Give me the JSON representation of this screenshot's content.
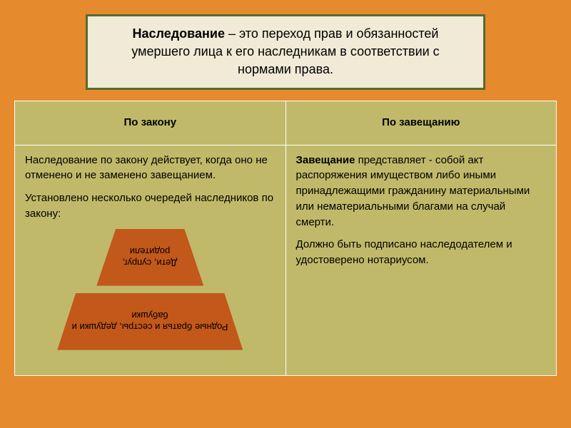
{
  "title": {
    "term": "Наследование",
    "definition": " – это переход прав и обязанностей умершего лица к его наследникам в соответствии с нормами права."
  },
  "table": {
    "headers": {
      "left": "По закону",
      "right": "По завещанию"
    },
    "left": {
      "p1": "Наследование по закону действует, когда оно не отменено и не заменено завещанием.",
      "p2": "Установлено несколько очередей наследников по закону:"
    },
    "right": {
      "p1_bold": "Завещание",
      "p1_rest": " представляет - собой акт распоряжения имуществом либо иными принадлежащими гражданину материальными или нематериальными благами на случай смерти.",
      "p2": "Должно быть подписано наследодателем и удостоверено нотариусом."
    },
    "pyramid": {
      "tier1": "Дети, супруг, родители",
      "tier2": "Родные братья и сестры, дедушки и бабушки"
    }
  },
  "style": {
    "bg": "#e68a2e",
    "title_bg": "#f0ead6",
    "title_border": "#556b2f",
    "table_bg": "#c0b96a",
    "cell_border": "#ffffff",
    "trap_fill": "#c2581a",
    "title_fontsize": 18,
    "body_fontsize": 15,
    "trap_label_fontsize": 13
  }
}
